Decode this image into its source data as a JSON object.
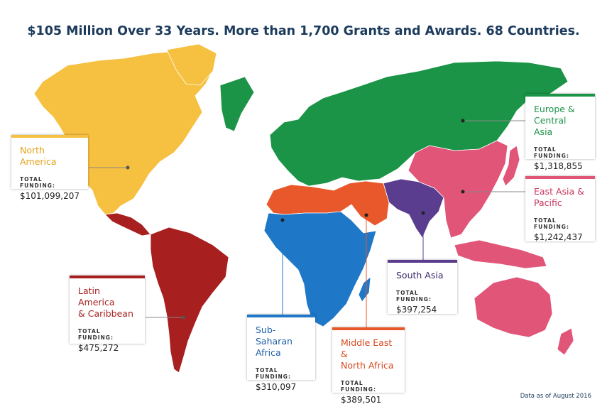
{
  "title": "$105 Million Over 33 Years. More than 1,700 Grants and Awards. 68 Countries.",
  "footnote": "Data as of August 2016",
  "funding_label": "TOTAL FUNDING:",
  "colors": {
    "north_america": "#f6c040",
    "latin_america": "#a7201f",
    "europe_central_asia": "#1b9447",
    "east_asia_pacific": "#e15579",
    "south_asia": "#5a3d8e",
    "sub_saharan_africa": "#1f77c8",
    "middle_east_north_africa": "#e8582a"
  },
  "regions": {
    "north_america": {
      "name": "North America",
      "funding": "$101,099,207"
    },
    "latin_america": {
      "name": "Latin America\n& Caribbean",
      "funding": "$475,272"
    },
    "europe_central_asia": {
      "name": "Europe &\nCentral Asia",
      "funding": "$1,318,855"
    },
    "east_asia_pacific": {
      "name": "East Asia &\nPacific",
      "funding": "$1,242,437"
    },
    "south_asia": {
      "name": "South Asia",
      "funding": "$397,254"
    },
    "sub_saharan_africa": {
      "name": "Sub-Saharan\nAfrica",
      "funding": "$310,097"
    },
    "middle_east_north_africa": {
      "name": "Middle East &\nNorth Africa",
      "funding": "$389,501"
    }
  }
}
